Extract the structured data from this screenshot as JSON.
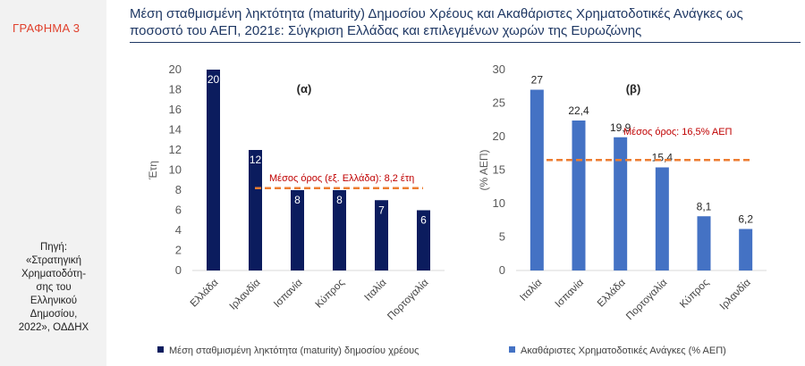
{
  "sidebar": {
    "label": "ΓΡΑΦΗΜΑ 3",
    "source_lines": [
      "Πηγή:",
      "«Στρατηγική",
      "Χρηματοδότη-",
      "σης του",
      "Ελληνικού",
      "Δημοσίου,",
      "2022», ΟΔΔΗΧ"
    ]
  },
  "title": {
    "line1": "Μέση σταθμισμένη ληκτότητα (maturity) Δημοσίου Χρέους και Ακαθάριστες Χρηματοδοτικές Ανάγκες ως",
    "line2": "ποσοστό του ΑΕΠ, 2021ε: Σύγκριση Ελλάδας και επιλεγμένων χωρών της Ευρωζώνης"
  },
  "colors": {
    "bar_a": "#0b1c5e",
    "bar_b": "#4472c4",
    "avg_line": "#ed7d31",
    "avg_text": "#c00000",
    "title": "#1f3864",
    "sidebar_label": "#e0412d"
  },
  "chart_data": [
    {
      "type": "bar",
      "panel_label": "(α)",
      "categories": [
        "Ελλάδα",
        "Ιρλανδία",
        "Ισπανία",
        "Κύπρος",
        "Ιταλία",
        "Πορτογαλία"
      ],
      "series": [
        {
          "name": "Μέση σταθμισμένη ληκτότητα (maturity) δημοσίου χρέους",
          "values": [
            20,
            12,
            8,
            8,
            7,
            6
          ]
        }
      ],
      "data_labels": [
        "20",
        "12",
        "8",
        "8",
        "7",
        "6"
      ],
      "ylabel": "Έτη",
      "ylim": [
        0,
        20
      ],
      "yticks": [
        0,
        2,
        4,
        6,
        8,
        10,
        12,
        14,
        16,
        18,
        20
      ],
      "reference_line": {
        "value": 8.2,
        "label": "Μέσος όρος (εξ. Ελλάδα): 8,2 έτη"
      },
      "legend_position": "bottom",
      "grid": false
    },
    {
      "type": "bar",
      "panel_label": "(β)",
      "categories": [
        "Ιταλία",
        "Ισπανία",
        "Ελλάδα",
        "Πορτογαλία",
        "Κύπρος",
        "Ιρλανδία"
      ],
      "series": [
        {
          "name": "Ακαθάριστες Χρηματοδοτικές Ανάγκες (% ΑΕΠ)",
          "values": [
            27,
            22.4,
            19.9,
            15.4,
            8.1,
            6.2
          ]
        }
      ],
      "data_labels": [
        "27",
        "22,4",
        "19,9",
        "15,4",
        "8,1",
        "6,2"
      ],
      "ylabel": "(% ΑΕΠ)",
      "ylim": [
        0,
        30
      ],
      "yticks": [
        0,
        5,
        10,
        15,
        20,
        25,
        30
      ],
      "reference_line": {
        "value": 16.5,
        "label": "Μέσος όρος: 16,5% ΑΕΠ"
      },
      "legend_position": "bottom",
      "grid": false
    }
  ]
}
